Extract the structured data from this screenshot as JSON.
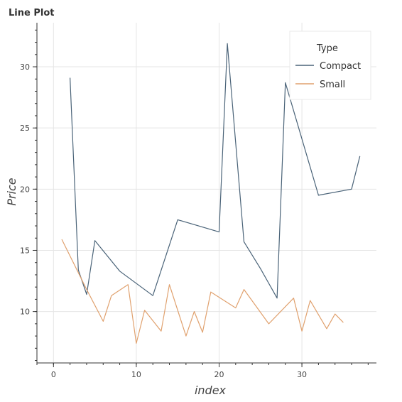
{
  "chart_data": {
    "type": "line",
    "title": "Line Plot",
    "xlabel": "index",
    "ylabel": "Price",
    "xlim": [
      -2,
      39
    ],
    "ylim": [
      5.8,
      33.6
    ],
    "xticks": [
      0,
      10,
      20,
      30
    ],
    "yticks": [
      10,
      15,
      20,
      25,
      30
    ],
    "grid": true,
    "legend": {
      "title": "Type",
      "placement": "top-right"
    },
    "series": [
      {
        "name": "Compact",
        "color": "#4a6378",
        "x": [
          2,
          3,
          4,
          5,
          8,
          12,
          15,
          20,
          21,
          23,
          25,
          27,
          28,
          32,
          36,
          37
        ],
        "y": [
          29.1,
          13.4,
          11.4,
          15.8,
          13.3,
          11.3,
          17.5,
          16.5,
          31.9,
          15.7,
          13.5,
          11.1,
          28.7,
          19.5,
          20.0,
          22.7
        ]
      },
      {
        "name": "Small",
        "color": "#e0a16e",
        "x": [
          1,
          4,
          6,
          7,
          9,
          10,
          11,
          13,
          14,
          16,
          17,
          18,
          19,
          22,
          23,
          26,
          29,
          30,
          31,
          33,
          34,
          35
        ],
        "y": [
          15.9,
          11.8,
          9.2,
          11.3,
          12.2,
          7.4,
          10.1,
          8.4,
          12.2,
          8.0,
          10.0,
          8.3,
          11.6,
          10.3,
          11.8,
          9.0,
          11.1,
          8.4,
          10.9,
          8.6,
          9.8,
          9.1
        ]
      }
    ]
  }
}
